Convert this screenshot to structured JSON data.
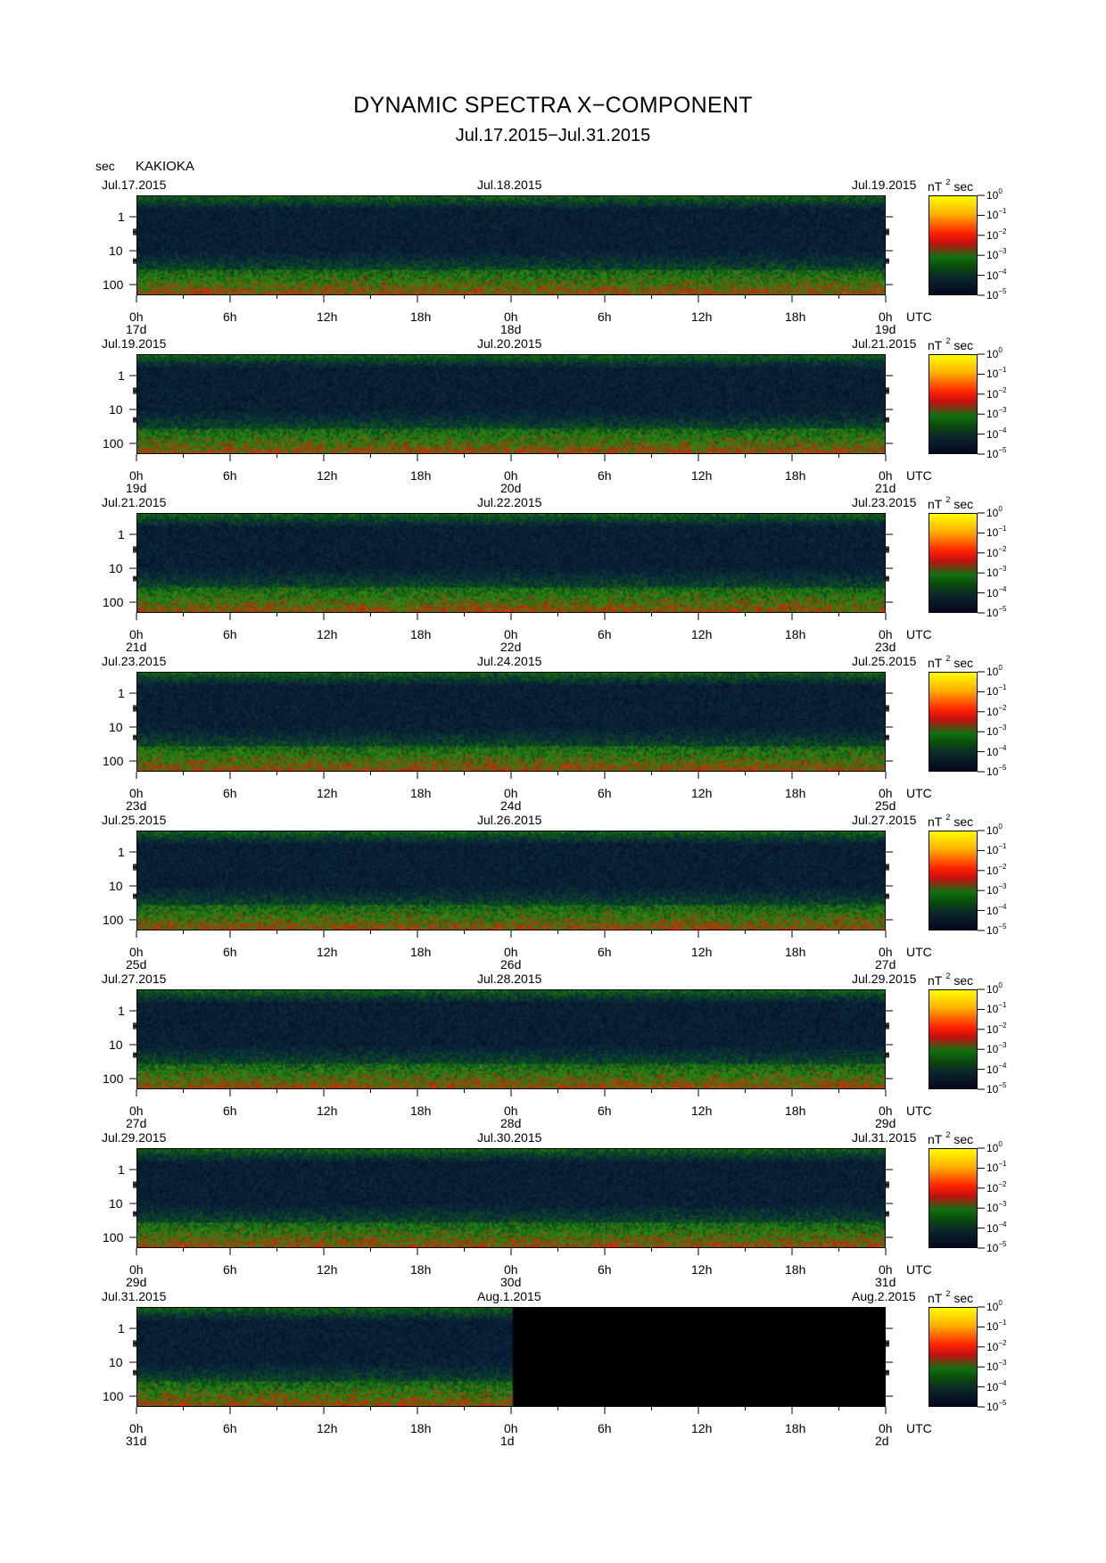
{
  "header": {
    "title": "DYNAMIC SPECTRA X−COMPONENT",
    "subtitle": "Jul.17.2015−Jul.31.2015",
    "y_unit": "sec",
    "station": "KAKIOKA"
  },
  "colorbar": {
    "unit": "nT",
    "unit_exp": "2",
    "unit_suffix": "sec",
    "ticks": [
      {
        "base": "10",
        "exp": "0"
      },
      {
        "base": "10",
        "exp": "−1"
      },
      {
        "base": "10",
        "exp": "−2"
      },
      {
        "base": "10",
        "exp": "−3"
      },
      {
        "base": "10",
        "exp": "−4"
      },
      {
        "base": "10",
        "exp": "−5"
      }
    ],
    "colors": [
      "#ffff00",
      "#ff2000",
      "#107010",
      "#060620"
    ]
  },
  "chart_data": {
    "type": "heatmap",
    "title": "DYNAMIC SPECTRA X−COMPONENT",
    "subtitle": "Jul.17.2015−Jul.31.2015",
    "ylabel": "sec",
    "y_scale": "log",
    "y_ticks": [
      "1",
      "10",
      "100"
    ],
    "x_ticks": [
      "0h",
      "6h",
      "12h",
      "18h",
      "0h",
      "6h",
      "12h",
      "18h",
      "0h"
    ],
    "x_unit": "UTC",
    "color_scale": "log",
    "color_unit": "nT²sec",
    "color_range": [
      1e-05,
      1
    ],
    "panels": [
      {
        "start": "Jul.17.2015",
        "mid": "Jul.18.2015",
        "end": "Jul.19.2015",
        "day_labels": [
          "17d",
          "18d",
          "19d"
        ],
        "data_coverage": 1.0
      },
      {
        "start": "Jul.19.2015",
        "mid": "Jul.20.2015",
        "end": "Jul.21.2015",
        "day_labels": [
          "19d",
          "20d",
          "21d"
        ],
        "data_coverage": 1.0
      },
      {
        "start": "Jul.21.2015",
        "mid": "Jul.22.2015",
        "end": "Jul.23.2015",
        "day_labels": [
          "21d",
          "22d",
          "23d"
        ],
        "data_coverage": 1.0
      },
      {
        "start": "Jul.23.2015",
        "mid": "Jul.24.2015",
        "end": "Jul.25.2015",
        "day_labels": [
          "23d",
          "24d",
          "25d"
        ],
        "data_coverage": 1.0
      },
      {
        "start": "Jul.25.2015",
        "mid": "Jul.26.2015",
        "end": "Jul.27.2015",
        "day_labels": [
          "25d",
          "26d",
          "27d"
        ],
        "data_coverage": 1.0
      },
      {
        "start": "Jul.27.2015",
        "mid": "Jul.28.2015",
        "end": "Jul.29.2015",
        "day_labels": [
          "27d",
          "28d",
          "29d"
        ],
        "data_coverage": 1.0
      },
      {
        "start": "Jul.29.2015",
        "mid": "Jul.30.2015",
        "end": "Jul.31.2015",
        "day_labels": [
          "29d",
          "30d",
          "31d"
        ],
        "data_coverage": 1.0
      },
      {
        "start": "Jul.31.2015",
        "mid": "Aug.1.2015",
        "end": "Aug.2.2015",
        "day_labels": [
          "31d",
          "1d",
          "2d"
        ],
        "data_coverage": 0.5
      }
    ]
  }
}
